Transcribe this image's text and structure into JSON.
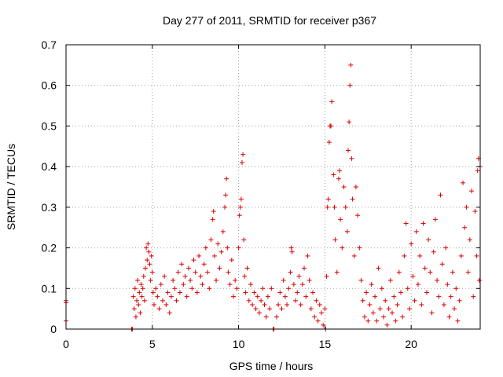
{
  "chart_data": {
    "type": "scatter",
    "title": "Day 277 of 2011, SRMTID for receiver p367",
    "xlabel": "GPS time / hours",
    "ylabel": "SRMTID / TECUs",
    "xlim": [
      0,
      24
    ],
    "ylim": [
      0,
      0.7
    ],
    "xticks": [
      0,
      5,
      10,
      15,
      20
    ],
    "yticks": [
      0,
      0.1,
      0.2,
      0.3,
      0.4,
      0.5,
      0.6,
      0.7
    ],
    "xtick_labels": [
      "0",
      "5",
      "10",
      "15",
      "20"
    ],
    "ytick_labels": [
      "0",
      "0.1",
      "0.2",
      "0.3",
      "0.4",
      "0.5",
      "0.6",
      "0.7"
    ],
    "grid": true,
    "marker": "+",
    "color": "#dd0000",
    "series": [
      {
        "name": "SRMTID",
        "points": [
          [
            0.0,
            0.07
          ],
          [
            0.0,
            0.065
          ],
          [
            0.0,
            0.02
          ],
          [
            3.8,
            0.0
          ],
          [
            3.85,
            0.0
          ],
          [
            12.0,
            0.0
          ],
          [
            12.05,
            0.0
          ],
          [
            3.9,
            0.08
          ],
          [
            3.95,
            0.05
          ],
          [
            4.0,
            0.1
          ],
          [
            4.05,
            0.03
          ],
          [
            4.1,
            0.07
          ],
          [
            4.15,
            0.12
          ],
          [
            4.2,
            0.06
          ],
          [
            4.25,
            0.09
          ],
          [
            4.3,
            0.04
          ],
          [
            4.35,
            0.11
          ],
          [
            4.4,
            0.08
          ],
          [
            4.45,
            0.1
          ],
          [
            4.5,
            0.13
          ],
          [
            4.55,
            0.07
          ],
          [
            4.6,
            0.15
          ],
          [
            4.65,
            0.2
          ],
          [
            4.7,
            0.17
          ],
          [
            4.75,
            0.21
          ],
          [
            4.8,
            0.19
          ],
          [
            4.85,
            0.16
          ],
          [
            4.9,
            0.12
          ],
          [
            4.95,
            0.18
          ],
          [
            5.0,
            0.14
          ],
          [
            5.05,
            0.09
          ],
          [
            5.1,
            0.06
          ],
          [
            5.2,
            0.1
          ],
          [
            5.3,
            0.08
          ],
          [
            5.4,
            0.05
          ],
          [
            5.5,
            0.11
          ],
          [
            5.6,
            0.07
          ],
          [
            5.7,
            0.13
          ],
          [
            5.8,
            0.06
          ],
          [
            5.9,
            0.09
          ],
          [
            6.0,
            0.04
          ],
          [
            6.1,
            0.08
          ],
          [
            6.2,
            0.12
          ],
          [
            6.3,
            0.1
          ],
          [
            6.4,
            0.07
          ],
          [
            6.5,
            0.14
          ],
          [
            6.6,
            0.09
          ],
          [
            6.7,
            0.16
          ],
          [
            6.8,
            0.11
          ],
          [
            6.9,
            0.13
          ],
          [
            7.0,
            0.08
          ],
          [
            7.1,
            0.15
          ],
          [
            7.2,
            0.12
          ],
          [
            7.3,
            0.1
          ],
          [
            7.4,
            0.17
          ],
          [
            7.5,
            0.14
          ],
          [
            7.6,
            0.09
          ],
          [
            7.7,
            0.18
          ],
          [
            7.8,
            0.13
          ],
          [
            7.9,
            0.11
          ],
          [
            8.0,
            0.16
          ],
          [
            8.1,
            0.2
          ],
          [
            8.2,
            0.14
          ],
          [
            8.3,
            0.1
          ],
          [
            8.4,
            0.22
          ],
          [
            8.5,
            0.27
          ],
          [
            8.55,
            0.29
          ],
          [
            8.6,
            0.18
          ],
          [
            8.7,
            0.12
          ],
          [
            8.8,
            0.21
          ],
          [
            8.9,
            0.15
          ],
          [
            9.0,
            0.19
          ],
          [
            9.1,
            0.24
          ],
          [
            9.2,
            0.3
          ],
          [
            9.25,
            0.33
          ],
          [
            9.3,
            0.37
          ],
          [
            9.35,
            0.2
          ],
          [
            9.4,
            0.14
          ],
          [
            9.5,
            0.11
          ],
          [
            9.6,
            0.17
          ],
          [
            9.7,
            0.08
          ],
          [
            9.8,
            0.12
          ],
          [
            9.9,
            0.1
          ],
          [
            10.0,
            0.2
          ],
          [
            10.05,
            0.28
          ],
          [
            10.1,
            0.3
          ],
          [
            10.15,
            0.32
          ],
          [
            10.2,
            0.41
          ],
          [
            10.25,
            0.43
          ],
          [
            10.3,
            0.22
          ],
          [
            10.35,
            0.13
          ],
          [
            10.4,
            0.09
          ],
          [
            10.5,
            0.15
          ],
          [
            10.6,
            0.07
          ],
          [
            10.7,
            0.11
          ],
          [
            10.8,
            0.06
          ],
          [
            10.9,
            0.09
          ],
          [
            11.0,
            0.05
          ],
          [
            11.1,
            0.08
          ],
          [
            11.2,
            0.04
          ],
          [
            11.3,
            0.07
          ],
          [
            11.4,
            0.1
          ],
          [
            11.5,
            0.06
          ],
          [
            11.6,
            0.03
          ],
          [
            11.7,
            0.08
          ],
          [
            11.8,
            0.05
          ],
          [
            11.9,
            0.1
          ],
          [
            12.2,
            0.03
          ],
          [
            12.3,
            0.06
          ],
          [
            12.4,
            0.09
          ],
          [
            12.5,
            0.05
          ],
          [
            12.6,
            0.12
          ],
          [
            12.7,
            0.08
          ],
          [
            12.8,
            0.06
          ],
          [
            12.9,
            0.1
          ],
          [
            13.0,
            0.14
          ],
          [
            13.05,
            0.2
          ],
          [
            13.1,
            0.19
          ],
          [
            13.2,
            0.11
          ],
          [
            13.3,
            0.07
          ],
          [
            13.4,
            0.09
          ],
          [
            13.5,
            0.13
          ],
          [
            13.6,
            0.06
          ],
          [
            13.7,
            0.11
          ],
          [
            13.8,
            0.15
          ],
          [
            13.9,
            0.08
          ],
          [
            14.0,
            0.18
          ],
          [
            14.1,
            0.12
          ],
          [
            14.2,
            0.05
          ],
          [
            14.3,
            0.09
          ],
          [
            14.4,
            0.03
          ],
          [
            14.5,
            0.07
          ],
          [
            14.6,
            0.02
          ],
          [
            14.7,
            0.06
          ],
          [
            14.8,
            0.04
          ],
          [
            14.9,
            0.01
          ],
          [
            15.0,
            0.05
          ],
          [
            15.05,
            0.0
          ],
          [
            15.1,
            0.13
          ],
          [
            15.15,
            0.3
          ],
          [
            15.2,
            0.32
          ],
          [
            15.25,
            0.46
          ],
          [
            15.3,
            0.5
          ],
          [
            15.35,
            0.5
          ],
          [
            15.4,
            0.56
          ],
          [
            15.5,
            0.38
          ],
          [
            15.55,
            0.3
          ],
          [
            15.6,
            0.22
          ],
          [
            15.7,
            0.14
          ],
          [
            15.8,
            0.37
          ],
          [
            15.85,
            0.39
          ],
          [
            15.9,
            0.27
          ],
          [
            16.0,
            0.2
          ],
          [
            16.1,
            0.35
          ],
          [
            16.2,
            0.3
          ],
          [
            16.3,
            0.24
          ],
          [
            16.35,
            0.44
          ],
          [
            16.4,
            0.51
          ],
          [
            16.45,
            0.6
          ],
          [
            16.5,
            0.65
          ],
          [
            16.55,
            0.42
          ],
          [
            16.6,
            0.32
          ],
          [
            16.7,
            0.18
          ],
          [
            16.8,
            0.35
          ],
          [
            16.9,
            0.28
          ],
          [
            17.0,
            0.2
          ],
          [
            17.1,
            0.12
          ],
          [
            17.2,
            0.07
          ],
          [
            17.3,
            0.03
          ],
          [
            17.4,
            0.09
          ],
          [
            17.5,
            0.02
          ],
          [
            17.6,
            0.06
          ],
          [
            17.7,
            0.11
          ],
          [
            17.8,
            0.04
          ],
          [
            17.9,
            0.08
          ],
          [
            18.0,
            0.02
          ],
          [
            18.1,
            0.15
          ],
          [
            18.2,
            0.05
          ],
          [
            18.3,
            0.1
          ],
          [
            18.4,
            0.03
          ],
          [
            18.5,
            0.07
          ],
          [
            18.6,
            0.01
          ],
          [
            18.7,
            0.05
          ],
          [
            18.8,
            0.12
          ],
          [
            18.9,
            0.04
          ],
          [
            19.0,
            0.08
          ],
          [
            19.1,
            0.02
          ],
          [
            19.2,
            0.06
          ],
          [
            19.3,
            0.14
          ],
          [
            19.4,
            0.09
          ],
          [
            19.5,
            0.03
          ],
          [
            19.6,
            0.18
          ],
          [
            19.7,
            0.26
          ],
          [
            19.8,
            0.1
          ],
          [
            19.9,
            0.05
          ],
          [
            20.0,
            0.21
          ],
          [
            20.1,
            0.13
          ],
          [
            20.2,
            0.07
          ],
          [
            20.3,
            0.24
          ],
          [
            20.4,
            0.11
          ],
          [
            20.5,
            0.18
          ],
          [
            20.6,
            0.06
          ],
          [
            20.7,
            0.26
          ],
          [
            20.8,
            0.15
          ],
          [
            20.9,
            0.09
          ],
          [
            21.0,
            0.22
          ],
          [
            21.1,
            0.14
          ],
          [
            21.2,
            0.04
          ],
          [
            21.3,
            0.19
          ],
          [
            21.4,
            0.27
          ],
          [
            21.5,
            0.12
          ],
          [
            21.6,
            0.08
          ],
          [
            21.7,
            0.33
          ],
          [
            21.8,
            0.16
          ],
          [
            21.9,
            0.06
          ],
          [
            22.0,
            0.2
          ],
          [
            22.1,
            0.11
          ],
          [
            22.2,
            0.03
          ],
          [
            22.3,
            0.08
          ],
          [
            22.4,
            0.14
          ],
          [
            22.5,
            0.05
          ],
          [
            22.6,
            0.1
          ],
          [
            22.7,
            0.02
          ],
          [
            22.8,
            0.07
          ],
          [
            22.9,
            0.18
          ],
          [
            23.0,
            0.36
          ],
          [
            23.1,
            0.25
          ],
          [
            23.2,
            0.3
          ],
          [
            23.3,
            0.14
          ],
          [
            23.4,
            0.22
          ],
          [
            23.5,
            0.34
          ],
          [
            23.6,
            0.08
          ],
          [
            23.7,
            0.29
          ],
          [
            23.8,
            0.18
          ],
          [
            23.85,
            0.39
          ],
          [
            23.9,
            0.42
          ],
          [
            23.95,
            0.12
          ],
          [
            24.0,
            0.4
          ]
        ]
      }
    ]
  }
}
